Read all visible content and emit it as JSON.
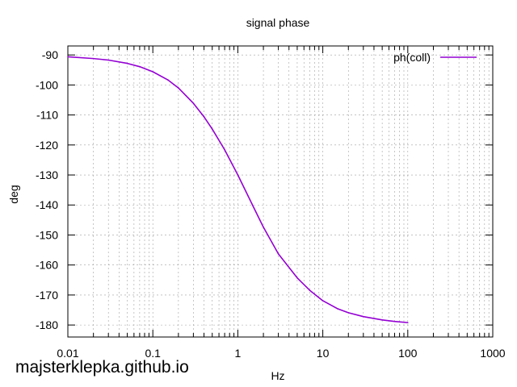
{
  "chart_data": {
    "type": "line",
    "title": "signal phase",
    "xlabel": "Hz",
    "ylabel": "deg",
    "x_scale": "log",
    "xlim": [
      0.01,
      1000
    ],
    "ylim": [
      -184,
      -87
    ],
    "x_ticks": [
      0.01,
      0.1,
      1,
      10,
      100,
      1000
    ],
    "x_tick_labels": [
      "0.01",
      "0.1",
      "1",
      "10",
      "100",
      "1000"
    ],
    "y_ticks": [
      -90,
      -100,
      -110,
      -120,
      -130,
      -140,
      -150,
      -160,
      -170,
      -180
    ],
    "y_tick_labels": [
      "-90",
      "-100",
      "-110",
      "-120",
      "-130",
      "-140",
      "-150",
      "-160",
      "-170",
      "-180"
    ],
    "grid": true,
    "legend_position": "top-right",
    "series": [
      {
        "name": "ph(coll)",
        "color": "#9400d3",
        "x": [
          0.01,
          0.02,
          0.03,
          0.05,
          0.07,
          0.1,
          0.15,
          0.2,
          0.3,
          0.4,
          0.5,
          0.7,
          1,
          1.5,
          2,
          3,
          5,
          7,
          10,
          15,
          20,
          30,
          50,
          70,
          100
        ],
        "y": [
          -90.6,
          -91.2,
          -91.7,
          -92.8,
          -93.9,
          -95.6,
          -98.3,
          -101,
          -106.1,
          -110.6,
          -114.7,
          -121.6,
          -130,
          -140.2,
          -147.4,
          -156.3,
          -164.3,
          -168.4,
          -171.9,
          -174.6,
          -175.9,
          -177.2,
          -178.3,
          -178.8,
          -179.2
        ]
      }
    ]
  },
  "watermark": "majsterklepka.github.io"
}
